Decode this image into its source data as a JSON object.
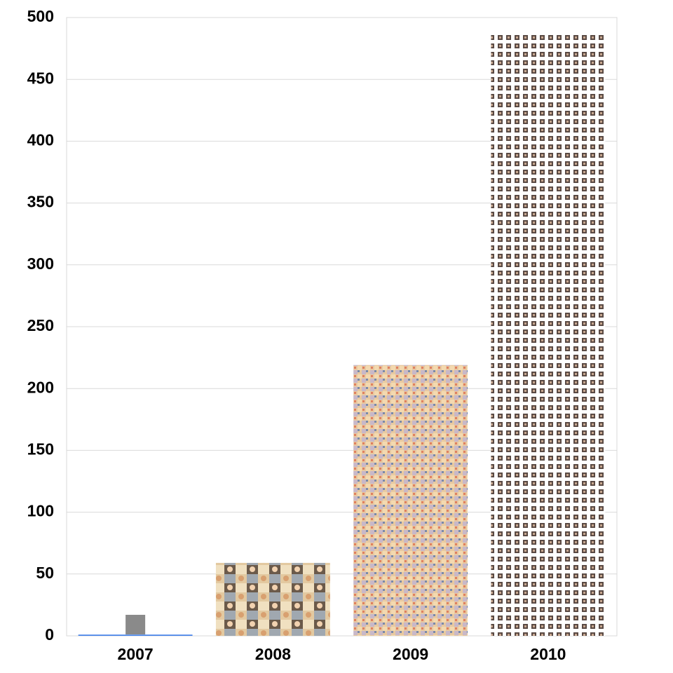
{
  "chart_data": {
    "type": "bar",
    "categories": [
      "2007",
      "2008",
      "2009",
      "2010"
    ],
    "values": [
      1,
      59,
      219,
      488
    ],
    "color": "#4a86e8",
    "ylim": [
      0,
      500
    ],
    "yticks": [
      0,
      50,
      100,
      150,
      200,
      250,
      300,
      350,
      400,
      450,
      500
    ],
    "grid": true
  }
}
